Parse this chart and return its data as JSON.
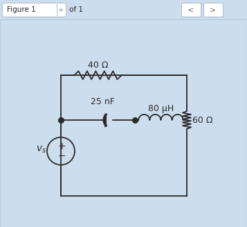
{
  "page_bg": "#ccdded",
  "circuit_bg": "#f5f8fb",
  "toolbar_bg": "#dce8f2",
  "toolbar_text": "Figure 1",
  "toolbar_of": "of 1",
  "fig_width": 3.57,
  "fig_height": 3.29,
  "dpi": 100,
  "resistor_40_label": "40 Ω",
  "capacitor_label": "25 nF",
  "inductor_label": "80 μH",
  "resistor_60_label": "60 Ω",
  "source_label": "$v_s$",
  "wire_color": "#2a2a2a",
  "component_color": "#2a2a2a",
  "text_color": "#2a2a2a",
  "toolbar_border": "#b8ccd8",
  "btn_bg": "#ffffff",
  "btn_border": "#b0c4d0"
}
